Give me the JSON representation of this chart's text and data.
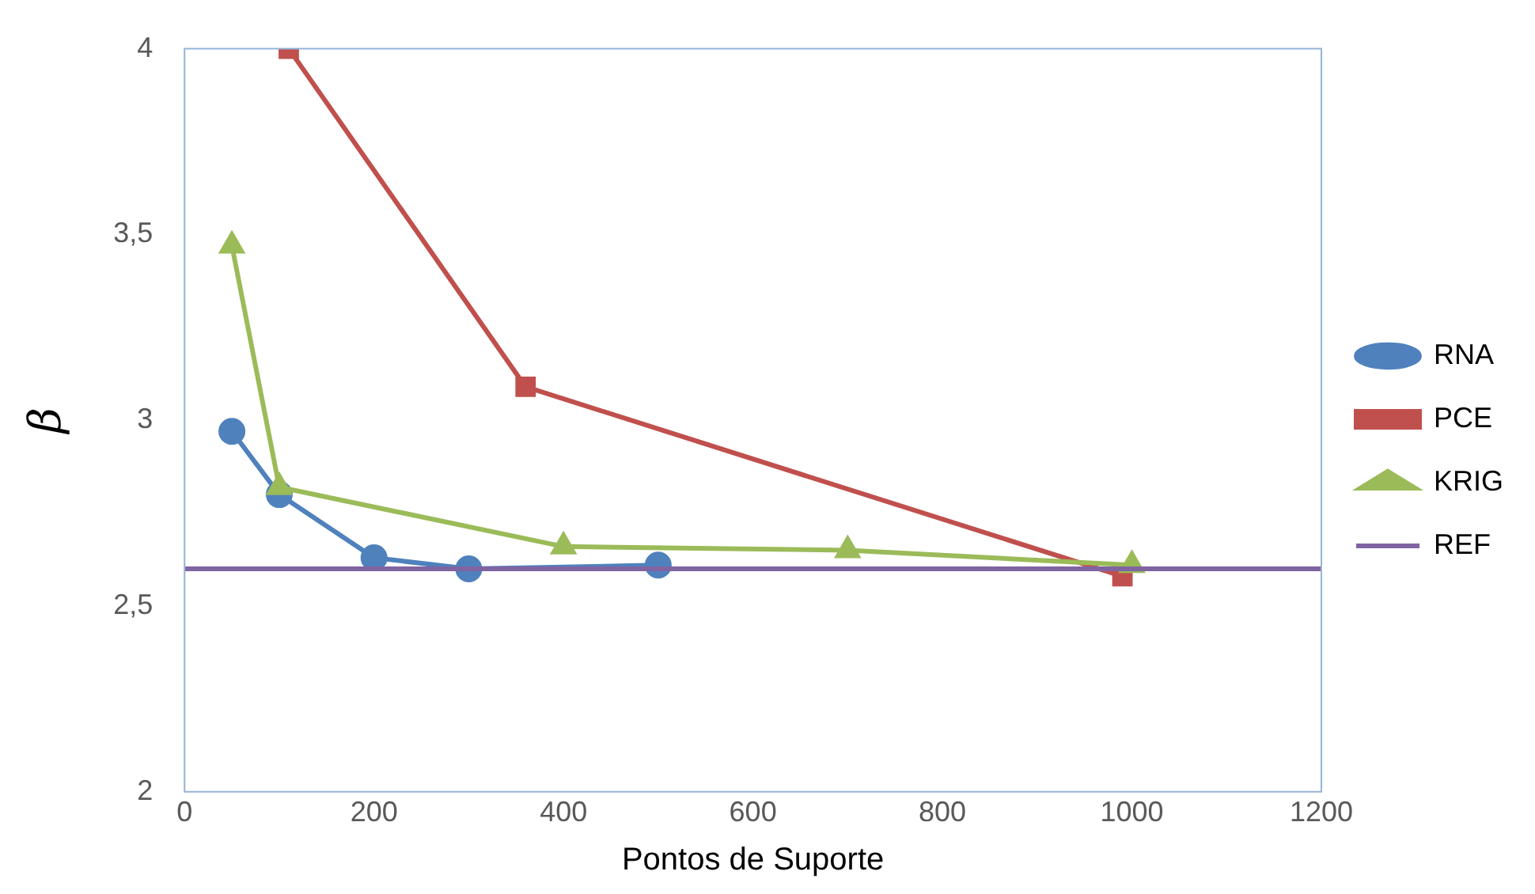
{
  "chart_data": {
    "type": "line",
    "xlabel": "Pontos de Suporte",
    "ylabel": "β",
    "xlim": [
      0,
      1200
    ],
    "xticks": [
      0,
      200,
      400,
      600,
      800,
      1000,
      1200
    ],
    "ylim": [
      2,
      4
    ],
    "yticks": [
      2,
      {
        "value": 2.5,
        "label": "2,5"
      },
      3,
      {
        "value": 3.5,
        "label": "3,5"
      },
      4
    ],
    "grid": false,
    "legend": "right",
    "series": [
      {
        "name": "RNA",
        "color": "#4f81bd",
        "marker": "circle",
        "x": [
          50,
          100,
          200,
          300,
          500
        ],
        "values": [
          2.97,
          2.8,
          2.63,
          2.6,
          2.61
        ]
      },
      {
        "name": "PCE",
        "color": "#c0504d",
        "marker": "square",
        "x": [
          110,
          360,
          990
        ],
        "values": [
          4.0,
          3.09,
          2.58
        ]
      },
      {
        "name": "KRIG",
        "color": "#9bbb59",
        "marker": "triangle",
        "x": [
          50,
          100,
          400,
          700,
          1000
        ],
        "values": [
          3.47,
          2.82,
          2.66,
          2.65,
          2.61
        ]
      },
      {
        "name": "REF",
        "color": "#8064a2",
        "marker": "none",
        "x": [
          0,
          1200
        ],
        "values": [
          2.6,
          2.6
        ]
      }
    ]
  }
}
